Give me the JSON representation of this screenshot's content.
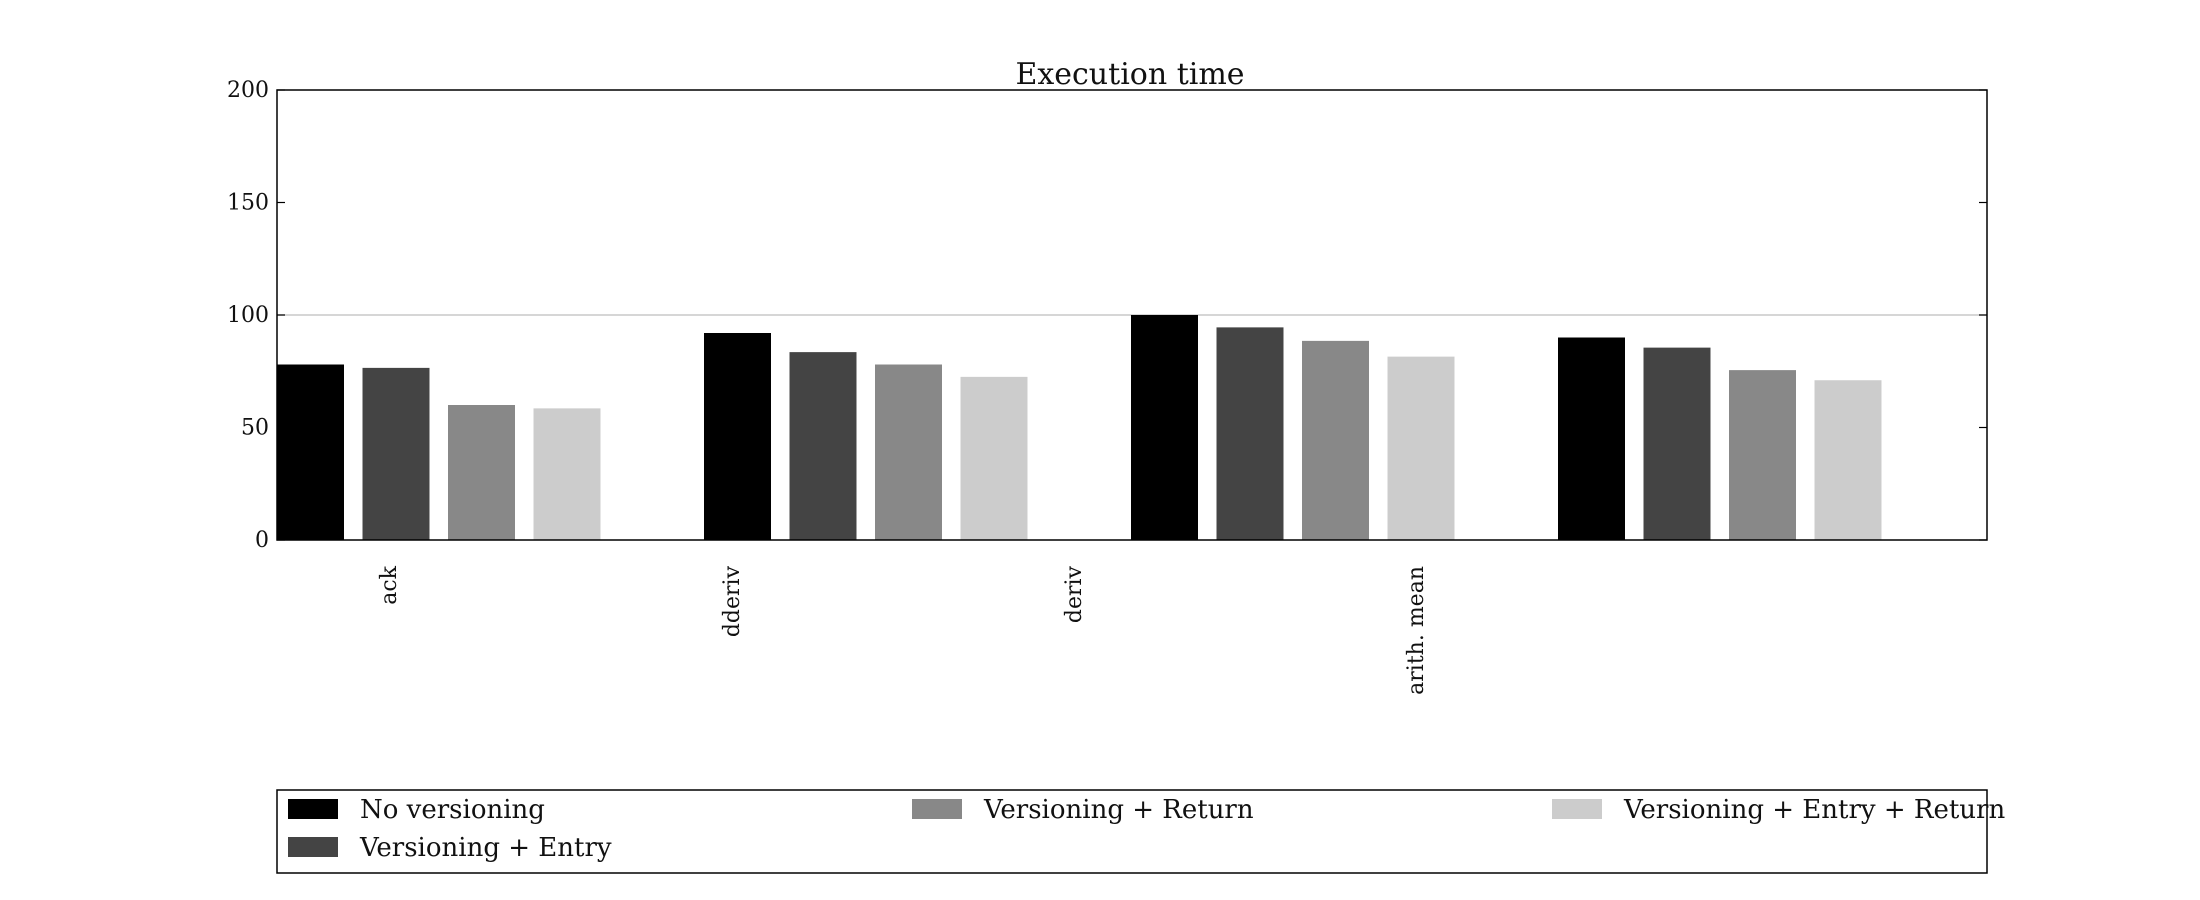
{
  "chart_data": {
    "type": "bar",
    "title": "Execution time",
    "xlabel": "",
    "ylabel": "",
    "ylim": [
      0,
      200
    ],
    "yticks": [
      0,
      50,
      100,
      150,
      200
    ],
    "grid": "horizontal line at 100",
    "reference_line": 100,
    "categories": [
      "ack",
      "dderiv",
      "deriv",
      "arith. mean"
    ],
    "series": [
      {
        "name": "No versioning",
        "color": "#000000",
        "values": [
          78,
          92,
          100,
          90
        ]
      },
      {
        "name": "Versioning + Entry",
        "color": "#444444",
        "values": [
          76.5,
          83.5,
          94.5,
          85.5
        ]
      },
      {
        "name": "Versioning + Return",
        "color": "#888888",
        "values": [
          60,
          78,
          88.5,
          75.5
        ]
      },
      {
        "name": "Versioning + Entry + Return",
        "color": "#cccccc",
        "values": [
          58.5,
          72.5,
          81.5,
          71
        ]
      }
    ],
    "legend_position": "bottom"
  }
}
